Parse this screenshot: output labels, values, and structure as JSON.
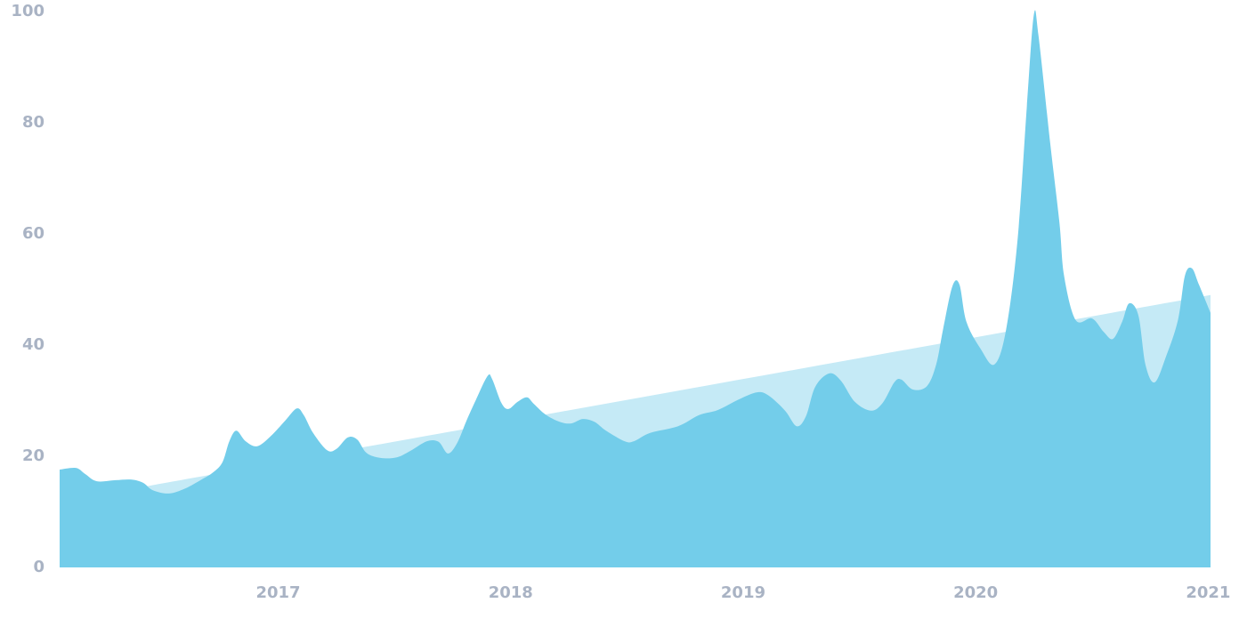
{
  "chart_data": {
    "type": "area",
    "xlim": [
      2016.06,
      2021.01
    ],
    "xticks": [
      2017,
      2018,
      2019,
      2020,
      2021
    ],
    "ylim": [
      0,
      100
    ],
    "yticks": [
      0,
      20,
      40,
      60,
      80,
      100
    ],
    "series": [
      {
        "color": "#c5eaf6",
        "x": [
          2016.06,
          2021.01
        ],
        "values": [
          11.8,
          49
        ]
      },
      {
        "color": "#73cdea",
        "x": [
          2016.06,
          2016.13,
          2016.17,
          2016.22,
          2016.3,
          2016.37,
          2016.42,
          2016.46,
          2016.53,
          2016.6,
          2016.67,
          2016.72,
          2016.76,
          2016.79,
          2016.82,
          2016.86,
          2016.91,
          2016.97,
          2017.03,
          2017.08,
          2017.11,
          2017.15,
          2017.21,
          2017.25,
          2017.3,
          2017.34,
          2017.38,
          2017.44,
          2017.51,
          2017.57,
          2017.64,
          2017.69,
          2017.73,
          2017.77,
          2017.81,
          2017.85,
          2017.9,
          2017.92,
          2017.96,
          2017.99,
          2018.03,
          2018.07,
          2018.1,
          2018.15,
          2018.21,
          2018.26,
          2018.31,
          2018.36,
          2018.41,
          2018.49,
          2018.53,
          2018.6,
          2018.72,
          2018.81,
          2018.89,
          2018.98,
          2019.06,
          2019.11,
          2019.18,
          2019.23,
          2019.27,
          2019.31,
          2019.37,
          2019.42,
          2019.48,
          2019.55,
          2019.6,
          2019.65,
          2019.68,
          2019.73,
          2019.79,
          2019.83,
          2019.86,
          2019.9,
          2019.93,
          2019.96,
          2020.02,
          2020.08,
          2020.13,
          2020.18,
          2020.22,
          2020.25,
          2020.27,
          2020.32,
          2020.36,
          2020.38,
          2020.43,
          2020.5,
          2020.55,
          2020.59,
          2020.63,
          2020.66,
          2020.7,
          2020.73,
          2020.77,
          2020.82,
          2020.87,
          2020.9,
          2020.93,
          2020.96,
          2021.01
        ],
        "values": [
          17.6,
          17.9,
          16.8,
          15.5,
          15.7,
          15.8,
          15.2,
          13.9,
          13.3,
          14.2,
          15.8,
          17.1,
          18.9,
          22.7,
          24.6,
          22.7,
          21.8,
          23.7,
          26.4,
          28.6,
          27.4,
          24.2,
          21.1,
          21.3,
          23.4,
          23.0,
          20.6,
          19.7,
          19.8,
          21.0,
          22.7,
          22.6,
          20.5,
          22.4,
          26.4,
          30.1,
          34.4,
          33.9,
          29.6,
          28.5,
          29.8,
          30.6,
          29.4,
          27.5,
          26.2,
          25.9,
          26.7,
          26.2,
          24.6,
          22.7,
          22.7,
          24.2,
          25.4,
          27.4,
          28.3,
          30.2,
          31.5,
          30.9,
          28.2,
          25.4,
          27.2,
          32.5,
          34.9,
          33.6,
          29.8,
          28.2,
          29.6,
          33.3,
          33.8,
          32.0,
          32.6,
          36.5,
          42.9,
          50.6,
          50.9,
          44.2,
          39.4,
          36.5,
          42.6,
          58.9,
          82.9,
          99.4,
          95.7,
          76.5,
          62.1,
          52.5,
          44.5,
          44.8,
          42.4,
          41.1,
          44.2,
          47.5,
          45.3,
          36.5,
          33.3,
          38.1,
          44.5,
          52.5,
          53.8,
          50.9,
          45.8
        ]
      }
    ]
  }
}
